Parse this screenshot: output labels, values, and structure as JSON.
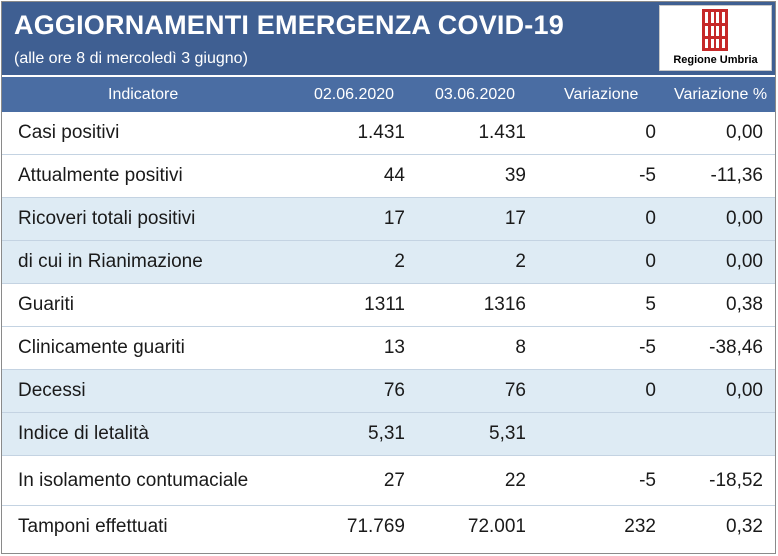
{
  "header": {
    "title": "AGGIORNAMENTI EMERGENZA COVID-19",
    "subtitle": "(alle ore 8 di mercoledì 3 giugno)",
    "logo_text": "Regione Umbria",
    "colors": {
      "banner": "#3f5f92",
      "header_row": "#4a6da3",
      "alt_row": "#deebf4",
      "logo_red": "#c62828"
    }
  },
  "table": {
    "columns": [
      "Indicatore",
      "02.06.2020",
      "03.06.2020",
      "Variazione",
      "Variazione %"
    ],
    "rows": [
      {
        "label": "Casi positivi",
        "d1": "1.431",
        "d2": "1.431",
        "var": "0",
        "pct": "0,00"
      },
      {
        "label": "Attualmente positivi",
        "d1": "44",
        "d2": "39",
        "var": "-5",
        "pct": "-11,36"
      },
      {
        "label": "Ricoveri totali positivi",
        "d1": "17",
        "d2": "17",
        "var": "0",
        "pct": "0,00"
      },
      {
        "label": "di cui in Rianimazione",
        "d1": "2",
        "d2": "2",
        "var": "0",
        "pct": "0,00"
      },
      {
        "label": "Guariti",
        "d1": "1311",
        "d2": "1316",
        "var": "5",
        "pct": "0,38"
      },
      {
        "label": "Clinicamente guariti",
        "d1": "13",
        "d2": "8",
        "var": "-5",
        "pct": "-38,46"
      },
      {
        "label": "Decessi",
        "d1": "76",
        "d2": "76",
        "var": "0",
        "pct": "0,00"
      },
      {
        "label": "Indice di letalità",
        "d1": "5,31",
        "d2": "5,31",
        "var": "",
        "pct": ""
      },
      {
        "label": "In isolamento contumaciale",
        "d1": "27",
        "d2": "22",
        "var": "-5",
        "pct": "-18,52"
      },
      {
        "label": "Tamponi effettuati",
        "d1": "71.769",
        "d2": "72.001",
        "var": "232",
        "pct": "0,32"
      }
    ]
  }
}
